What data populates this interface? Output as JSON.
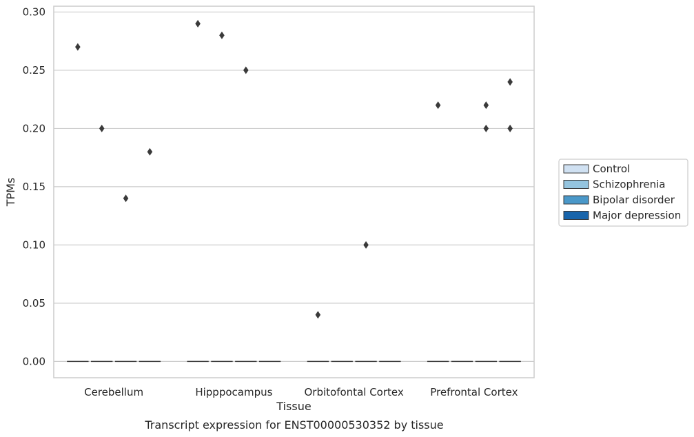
{
  "colors": {
    "grid": "#cccccc",
    "spine": "#cccccc",
    "marker": "#3a3a3a",
    "median": "#3a3a3a",
    "legend_border": "#cccccc"
  },
  "caption": "Transcript expression for ENST00000530352 by tissue",
  "chart_data": {
    "type": "box",
    "title": "",
    "xlabel": "Tissue",
    "ylabel": "TPMs",
    "ylim": [
      -0.014,
      0.305
    ],
    "yticks": [
      0.0,
      0.05,
      0.1,
      0.15,
      0.2,
      0.25,
      0.3
    ],
    "ytick_labels": [
      "0.00",
      "0.05",
      "0.10",
      "0.15",
      "0.20",
      "0.25",
      "0.30"
    ],
    "grid": "horizontal",
    "legend_position": "right",
    "categories": [
      "Cerebellum",
      "Hipppocampus",
      "Orbitofontal Cortex",
      "Prefrontal Cortex"
    ],
    "series": [
      {
        "name": "Control",
        "color": "#d0e1f2",
        "median": [
          0,
          0,
          0,
          0
        ],
        "outliers": [
          [
            0.27
          ],
          [
            0.29
          ],
          [
            0.04
          ],
          [
            0.22
          ]
        ]
      },
      {
        "name": "Schizophrenia",
        "color": "#94c4df",
        "median": [
          0,
          0,
          0,
          0
        ],
        "outliers": [
          [
            0.2
          ],
          [
            0.28
          ],
          [],
          []
        ]
      },
      {
        "name": "Bipolar disorder",
        "color": "#4a98c9",
        "median": [
          0,
          0,
          0,
          0
        ],
        "outliers": [
          [
            0.14
          ],
          [
            0.25
          ],
          [
            0.1
          ],
          [
            0.22,
            0.2
          ]
        ]
      },
      {
        "name": "Major depression",
        "color": "#1764ab",
        "median": [
          0,
          0,
          0,
          0
        ],
        "outliers": [
          [
            0.18
          ],
          [],
          [],
          [
            0.24,
            0.2
          ]
        ]
      }
    ]
  }
}
